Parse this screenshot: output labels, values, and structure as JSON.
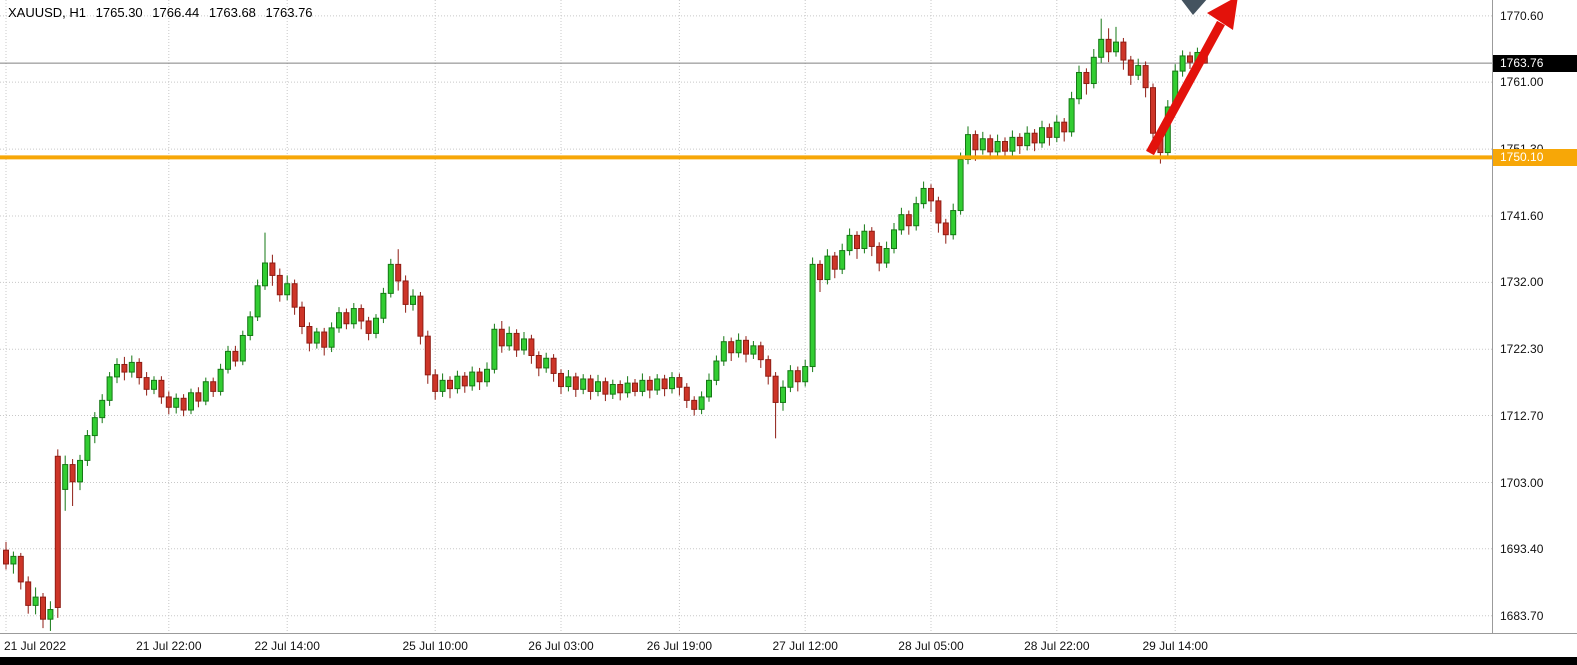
{
  "window": {
    "symbol_ohlc": {
      "symbol": "XAUUSD, H1",
      "open": "1765.30",
      "high": "1766.44",
      "low": "1763.68",
      "close": "1763.76"
    }
  },
  "colors": {
    "up_body": "#32CD32",
    "up_line": "#157815",
    "down_body": "#CD3528",
    "down_line": "#8F1D14",
    "grid": "#C8C8C8",
    "price_line": "#808080",
    "current_tag_bg": "#000000",
    "hline": "#F7A707",
    "arrow": "#E3120B",
    "gray_marker": "#44535F"
  },
  "chart_data": {
    "type": "candlestick",
    "title": "XAUUSD, H1",
    "symbol": "XAUUSD",
    "timeframe": "H1",
    "y_axis": {
      "labels": [
        "1770.60",
        "1761.00",
        "1751.30",
        "1741.60",
        "1732.00",
        "1722.30",
        "1712.70",
        "1703.00",
        "1693.40",
        "1683.70"
      ],
      "range_top": 1772.9,
      "range_bottom": 1681.2
    },
    "x_axis": {
      "labels": [
        {
          "index": 0,
          "label": "21 Jul 2022"
        },
        {
          "index": 22,
          "label": "21 Jul 22:00"
        },
        {
          "index": 38,
          "label": "22 Jul 14:00"
        },
        {
          "index": 58,
          "label": "25 Jul 10:00"
        },
        {
          "index": 75,
          "label": "26 Jul 03:00"
        },
        {
          "index": 91,
          "label": "26 Jul 19:00"
        },
        {
          "index": 108,
          "label": "27 Jul 12:00"
        },
        {
          "index": 125,
          "label": "28 Jul 05:00"
        },
        {
          "index": 142,
          "label": "28 Jul 22:00"
        },
        {
          "index": 158,
          "label": "29 Jul 14:00"
        }
      ]
    },
    "current_price": {
      "value": 1763.76,
      "label": "1763.76"
    },
    "horizontal_line": {
      "price": 1750.1,
      "label": "1750.10",
      "color": "#F7A707"
    },
    "annotations": [
      {
        "type": "arrow",
        "color": "#E3120B",
        "direction": "up-right",
        "note": "bullish breakout arrow from 1750 support"
      },
      {
        "type": "marker",
        "color": "#44535F",
        "note": "gray arrowhead marker at top"
      }
    ],
    "candles": [
      [
        1693.2,
        1694.4,
        1690.4,
        1691.2
      ],
      [
        1691.2,
        1693.0,
        1689.8,
        1692.3
      ],
      [
        1692.3,
        1692.8,
        1687.5,
        1688.6
      ],
      [
        1688.6,
        1689.4,
        1684.0,
        1685.2
      ],
      [
        1685.2,
        1687.8,
        1683.9,
        1686.4
      ],
      [
        1686.4,
        1687.0,
        1681.9,
        1683.2
      ],
      [
        1683.2,
        1685.8,
        1681.5,
        1684.6
      ],
      [
        1706.8,
        1707.8,
        1683.4,
        1684.9
      ],
      [
        1702.0,
        1706.9,
        1698.9,
        1705.6
      ],
      [
        1705.6,
        1706.4,
        1699.6,
        1703.1
      ],
      [
        1703.1,
        1707.0,
        1701.9,
        1706.2
      ],
      [
        1706.2,
        1710.6,
        1705.4,
        1709.8
      ],
      [
        1709.8,
        1713.2,
        1708.7,
        1712.4
      ],
      [
        1712.4,
        1715.8,
        1711.6,
        1714.9
      ],
      [
        1714.9,
        1719.0,
        1714.1,
        1718.3
      ],
      [
        1718.3,
        1721.0,
        1717.4,
        1720.1
      ],
      [
        1720.1,
        1721.2,
        1717.8,
        1719.0
      ],
      [
        1719.0,
        1721.4,
        1718.2,
        1720.4
      ],
      [
        1720.4,
        1721.0,
        1717.2,
        1718.2
      ],
      [
        1718.2,
        1719.0,
        1715.6,
        1716.5
      ],
      [
        1716.5,
        1718.4,
        1715.8,
        1717.8
      ],
      [
        1717.8,
        1718.4,
        1714.4,
        1715.4
      ],
      [
        1715.4,
        1716.2,
        1712.9,
        1713.9
      ],
      [
        1713.9,
        1715.9,
        1713.0,
        1715.2
      ],
      [
        1715.2,
        1715.8,
        1712.6,
        1713.5
      ],
      [
        1713.5,
        1716.6,
        1712.9,
        1716.0
      ],
      [
        1716.0,
        1716.8,
        1713.9,
        1714.8
      ],
      [
        1714.8,
        1718.2,
        1714.2,
        1717.6
      ],
      [
        1717.6,
        1718.2,
        1715.4,
        1716.2
      ],
      [
        1716.2,
        1720.2,
        1715.6,
        1719.4
      ],
      [
        1719.4,
        1722.8,
        1718.8,
        1722.0
      ],
      [
        1722.0,
        1722.8,
        1719.8,
        1720.6
      ],
      [
        1720.6,
        1725.0,
        1720.0,
        1724.3
      ],
      [
        1724.3,
        1727.8,
        1723.6,
        1727.0
      ],
      [
        1727.0,
        1732.4,
        1726.4,
        1731.5
      ],
      [
        1731.5,
        1739.2,
        1730.9,
        1734.8
      ],
      [
        1734.8,
        1736.0,
        1731.5,
        1733.0
      ],
      [
        1733.0,
        1734.0,
        1729.2,
        1730.2
      ],
      [
        1730.2,
        1733.0,
        1729.4,
        1731.8
      ],
      [
        1731.8,
        1732.4,
        1727.3,
        1728.4
      ],
      [
        1728.4,
        1729.2,
        1724.5,
        1725.6
      ],
      [
        1725.6,
        1726.2,
        1722.0,
        1723.2
      ],
      [
        1723.2,
        1725.4,
        1722.4,
        1724.8
      ],
      [
        1724.8,
        1725.4,
        1721.4,
        1722.6
      ],
      [
        1722.6,
        1726.2,
        1721.9,
        1725.4
      ],
      [
        1725.4,
        1728.4,
        1724.7,
        1727.6
      ],
      [
        1727.6,
        1728.2,
        1725.2,
        1726.0
      ],
      [
        1726.0,
        1729.0,
        1725.3,
        1728.2
      ],
      [
        1728.2,
        1728.8,
        1725.2,
        1726.4
      ],
      [
        1726.4,
        1727.0,
        1723.6,
        1724.6
      ],
      [
        1724.6,
        1727.4,
        1723.9,
        1726.8
      ],
      [
        1726.8,
        1731.2,
        1726.1,
        1730.4
      ],
      [
        1730.4,
        1735.4,
        1729.8,
        1734.6
      ],
      [
        1734.6,
        1736.8,
        1730.8,
        1732.2
      ],
      [
        1732.2,
        1733.0,
        1727.6,
        1728.8
      ],
      [
        1728.8,
        1731.0,
        1727.9,
        1730.0
      ],
      [
        1730.0,
        1730.6,
        1723.0,
        1724.2
      ],
      [
        1724.2,
        1725.0,
        1717.3,
        1718.6
      ],
      [
        1718.6,
        1719.4,
        1715.0,
        1716.2
      ],
      [
        1716.2,
        1718.8,
        1715.4,
        1717.8
      ],
      [
        1717.8,
        1718.4,
        1715.2,
        1716.6
      ],
      [
        1716.6,
        1719.2,
        1715.9,
        1718.4
      ],
      [
        1718.4,
        1719.0,
        1716.0,
        1717.0
      ],
      [
        1717.0,
        1719.8,
        1716.3,
        1719.0
      ],
      [
        1719.0,
        1719.6,
        1716.4,
        1717.6
      ],
      [
        1717.6,
        1720.4,
        1716.9,
        1719.4
      ],
      [
        1719.4,
        1726.0,
        1718.8,
        1725.2
      ],
      [
        1725.2,
        1726.4,
        1721.8,
        1722.8
      ],
      [
        1722.8,
        1725.6,
        1722.1,
        1724.6
      ],
      [
        1724.6,
        1725.2,
        1721.2,
        1722.2
      ],
      [
        1722.2,
        1724.8,
        1721.5,
        1723.8
      ],
      [
        1723.8,
        1724.4,
        1720.2,
        1721.4
      ],
      [
        1721.4,
        1722.0,
        1718.4,
        1719.6
      ],
      [
        1719.6,
        1721.8,
        1718.9,
        1721.0
      ],
      [
        1721.0,
        1721.6,
        1717.6,
        1718.8
      ],
      [
        1718.8,
        1719.4,
        1715.8,
        1716.9
      ],
      [
        1716.9,
        1719.3,
        1716.2,
        1718.3
      ],
      [
        1718.3,
        1718.9,
        1715.4,
        1716.5
      ],
      [
        1716.5,
        1718.7,
        1715.8,
        1718.0
      ],
      [
        1718.0,
        1718.6,
        1715.0,
        1716.2
      ],
      [
        1716.2,
        1718.6,
        1715.5,
        1717.6
      ],
      [
        1717.6,
        1718.2,
        1714.8,
        1715.8
      ],
      [
        1715.8,
        1717.9,
        1715.1,
        1717.2
      ],
      [
        1717.2,
        1717.8,
        1714.9,
        1716.0
      ],
      [
        1716.0,
        1718.4,
        1715.3,
        1717.4
      ],
      [
        1717.4,
        1718.0,
        1715.5,
        1716.2
      ],
      [
        1716.2,
        1718.8,
        1715.5,
        1717.8
      ],
      [
        1717.8,
        1718.4,
        1715.2,
        1716.4
      ],
      [
        1716.4,
        1718.7,
        1715.7,
        1718.0
      ],
      [
        1718.0,
        1718.6,
        1715.5,
        1716.6
      ],
      [
        1716.6,
        1719.0,
        1715.9,
        1718.2
      ],
      [
        1718.2,
        1718.8,
        1715.6,
        1716.8
      ],
      [
        1716.8,
        1717.4,
        1713.8,
        1714.9
      ],
      [
        1714.9,
        1715.5,
        1712.7,
        1713.6
      ],
      [
        1713.6,
        1716.2,
        1712.9,
        1715.4
      ],
      [
        1715.4,
        1718.8,
        1714.7,
        1717.8
      ],
      [
        1717.8,
        1721.4,
        1717.1,
        1720.6
      ],
      [
        1720.6,
        1724.2,
        1719.9,
        1723.4
      ],
      [
        1723.4,
        1724.0,
        1720.6,
        1721.8
      ],
      [
        1721.8,
        1724.6,
        1721.1,
        1723.6
      ],
      [
        1723.6,
        1724.2,
        1720.4,
        1721.6
      ],
      [
        1721.6,
        1723.5,
        1720.9,
        1722.8
      ],
      [
        1722.8,
        1723.4,
        1719.6,
        1720.8
      ],
      [
        1720.8,
        1721.4,
        1717.2,
        1718.4
      ],
      [
        1718.4,
        1719.0,
        1709.4,
        1714.6
      ],
      [
        1714.6,
        1717.8,
        1713.4,
        1716.8
      ],
      [
        1716.8,
        1720.0,
        1716.1,
        1719.2
      ],
      [
        1719.2,
        1719.8,
        1716.2,
        1717.6
      ],
      [
        1717.6,
        1720.8,
        1716.9,
        1719.8
      ],
      [
        1719.8,
        1735.6,
        1719.0,
        1734.6
      ],
      [
        1734.6,
        1735.2,
        1730.6,
        1732.4
      ],
      [
        1732.4,
        1736.8,
        1731.7,
        1735.8
      ],
      [
        1735.8,
        1736.4,
        1732.6,
        1733.9
      ],
      [
        1733.9,
        1737.6,
        1733.2,
        1736.6
      ],
      [
        1736.6,
        1739.8,
        1735.9,
        1738.8
      ],
      [
        1738.8,
        1739.4,
        1735.4,
        1736.9
      ],
      [
        1736.9,
        1740.4,
        1736.2,
        1739.4
      ],
      [
        1739.4,
        1740.0,
        1735.8,
        1737.2
      ],
      [
        1737.2,
        1737.8,
        1733.6,
        1734.8
      ],
      [
        1734.8,
        1737.9,
        1734.1,
        1736.9
      ],
      [
        1736.9,
        1740.6,
        1736.2,
        1739.6
      ],
      [
        1739.6,
        1742.8,
        1738.9,
        1741.8
      ],
      [
        1741.8,
        1742.4,
        1738.9,
        1740.2
      ],
      [
        1740.2,
        1744.4,
        1739.5,
        1743.4
      ],
      [
        1743.4,
        1746.6,
        1742.7,
        1745.6
      ],
      [
        1745.6,
        1746.2,
        1742.2,
        1743.8
      ],
      [
        1743.8,
        1744.4,
        1739.2,
        1740.6
      ],
      [
        1740.6,
        1741.2,
        1737.6,
        1738.9
      ],
      [
        1738.9,
        1743.4,
        1738.2,
        1742.4
      ],
      [
        1742.4,
        1750.8,
        1741.8,
        1749.8
      ],
      [
        1749.8,
        1754.6,
        1749.1,
        1753.4
      ],
      [
        1753.4,
        1754.0,
        1749.6,
        1751.2
      ],
      [
        1751.2,
        1753.8,
        1750.5,
        1752.8
      ],
      [
        1752.8,
        1753.4,
        1749.8,
        1750.9
      ],
      [
        1750.9,
        1753.4,
        1750.2,
        1752.4
      ],
      [
        1752.4,
        1753.0,
        1750.0,
        1751.0
      ],
      [
        1751.0,
        1754.0,
        1750.3,
        1753.0
      ],
      [
        1753.0,
        1753.6,
        1750.6,
        1751.8
      ],
      [
        1751.8,
        1754.6,
        1751.1,
        1753.6
      ],
      [
        1753.6,
        1754.2,
        1751.0,
        1752.2
      ],
      [
        1752.2,
        1755.4,
        1751.5,
        1754.4
      ],
      [
        1754.4,
        1755.0,
        1751.8,
        1753.0
      ],
      [
        1753.0,
        1756.2,
        1752.3,
        1755.2
      ],
      [
        1755.2,
        1755.8,
        1752.4,
        1753.8
      ],
      [
        1753.8,
        1759.6,
        1753.1,
        1758.6
      ],
      [
        1758.6,
        1763.4,
        1757.8,
        1762.4
      ],
      [
        1762.4,
        1763.0,
        1759.2,
        1760.8
      ],
      [
        1760.8,
        1765.8,
        1760.1,
        1764.6
      ],
      [
        1764.6,
        1770.2,
        1763.8,
        1767.2
      ],
      [
        1767.2,
        1768.8,
        1763.9,
        1765.4
      ],
      [
        1765.4,
        1769.0,
        1764.7,
        1766.8
      ],
      [
        1766.8,
        1767.4,
        1762.8,
        1764.2
      ],
      [
        1764.2,
        1764.8,
        1760.6,
        1762.0
      ],
      [
        1762.0,
        1764.4,
        1761.3,
        1763.4
      ],
      [
        1763.4,
        1764.0,
        1758.8,
        1760.2
      ],
      [
        1760.2,
        1760.8,
        1752.2,
        1753.6
      ],
      [
        1753.6,
        1754.2,
        1749.2,
        1750.8
      ],
      [
        1750.8,
        1758.4,
        1750.0,
        1757.4
      ],
      [
        1757.4,
        1763.6,
        1756.7,
        1762.6
      ],
      [
        1762.6,
        1765.6,
        1761.8,
        1764.8
      ],
      [
        1764.8,
        1765.4,
        1762.9,
        1763.9
      ],
      [
        1763.9,
        1766.0,
        1763.2,
        1765.3
      ],
      [
        1765.3,
        1766.44,
        1763.68,
        1763.76
      ]
    ]
  }
}
